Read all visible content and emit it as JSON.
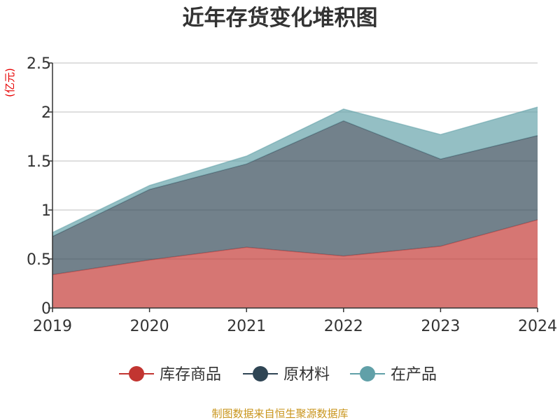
{
  "chart_data": {
    "type": "area",
    "stacked": true,
    "title": "近年存货变化堆积图",
    "unit_label": "(亿元)",
    "categories": [
      "2019",
      "2020",
      "2021",
      "2022",
      "2023",
      "2024"
    ],
    "ylim": [
      0,
      2.5
    ],
    "yticks": [
      "0",
      "0.5",
      "1",
      "1.5",
      "2",
      "2.5"
    ],
    "grid": true,
    "legend_position": "bottom",
    "series": [
      {
        "name": "库存商品",
        "values": [
          0.34,
          0.49,
          0.62,
          0.53,
          0.63,
          0.9
        ],
        "color": "#c23531"
      },
      {
        "name": "原材料",
        "values": [
          0.39,
          0.72,
          0.85,
          1.38,
          0.89,
          0.86
        ],
        "color": "#2f4554"
      },
      {
        "name": "在产品",
        "values": [
          0.04,
          0.04,
          0.08,
          0.12,
          0.25,
          0.29
        ],
        "color": "#61a0a8"
      }
    ],
    "source": "制图数据来自恒生聚源数据库"
  }
}
